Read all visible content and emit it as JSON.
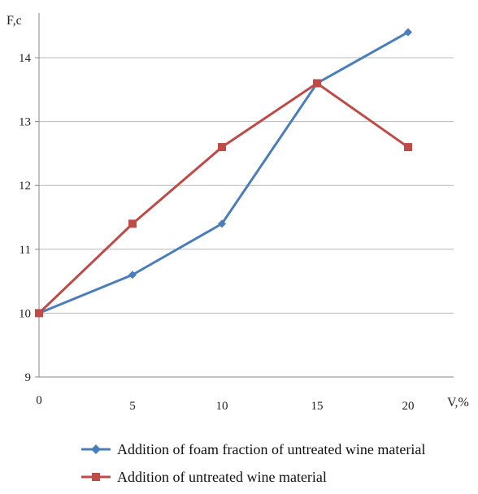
{
  "chart_data": {
    "type": "line",
    "xlabel": "V,%",
    "ylabel": "F,c",
    "x": [
      0,
      5,
      10,
      15,
      20
    ],
    "x_tick_labels": [
      "0",
      "5",
      "10",
      "15",
      "20"
    ],
    "y_tick_labels": [
      "9",
      "10",
      "11",
      "12",
      "13",
      "14"
    ],
    "ylim": [
      9,
      14.7
    ],
    "grid": "horizontal",
    "legend_position": "bottom",
    "series": [
      {
        "name": "Addition of foam fraction of untreated wine material",
        "marker": "diamond",
        "color": "#4A7EBB",
        "values": [
          10,
          10.6,
          11.4,
          13.6,
          14.4
        ]
      },
      {
        "name": "Addition of untreated wine material",
        "marker": "square",
        "color": "#BE4B48",
        "values": [
          10,
          11.4,
          12.6,
          13.6,
          12.6
        ]
      }
    ]
  }
}
